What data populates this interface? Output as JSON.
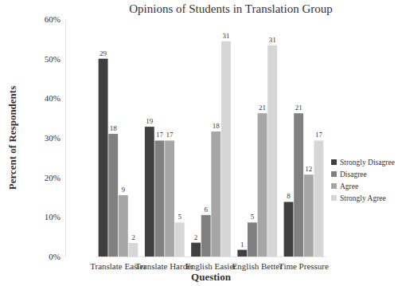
{
  "chart_data": {
    "type": "bar",
    "title": "Opinions of Students in Translation Group",
    "x_label": "Question",
    "y_label": "Percent of Respondents",
    "categories": [
      "Translate Easier",
      "Translate Harder",
      "English Easier",
      "English Better",
      "Time Pressure"
    ],
    "series": [
      {
        "name": "Strongly Disagree",
        "color": "#404040",
        "values": [
          50.0,
          32.8,
          3.5,
          1.7,
          13.8
        ],
        "counts": [
          29,
          19,
          2,
          1,
          8
        ]
      },
      {
        "name": "Disagree",
        "color": "#808080",
        "values": [
          31.0,
          29.3,
          10.5,
          8.6,
          36.2
        ],
        "counts": [
          18,
          17,
          6,
          5,
          21
        ]
      },
      {
        "name": "Agree",
        "color": "#a6a6a6",
        "values": [
          15.5,
          29.3,
          31.6,
          36.2,
          20.7
        ],
        "counts": [
          9,
          17,
          18,
          21,
          12
        ]
      },
      {
        "name": "Strongly Agree",
        "color": "#d6d6d6",
        "values": [
          3.4,
          8.6,
          54.4,
          53.4,
          29.3
        ],
        "counts": [
          2,
          5,
          31,
          31,
          17
        ]
      }
    ],
    "ylim": [
      0,
      60
    ],
    "yticks": [
      {
        "value": 0,
        "label": "0%"
      },
      {
        "value": 10,
        "label": "10%"
      },
      {
        "value": 20,
        "label": "20%"
      },
      {
        "value": 30,
        "label": "30%"
      },
      {
        "value": 40,
        "label": "40%"
      },
      {
        "value": 50,
        "label": "50%"
      },
      {
        "value": 60,
        "label": "60%"
      }
    ],
    "grid": false,
    "legend": "right"
  }
}
